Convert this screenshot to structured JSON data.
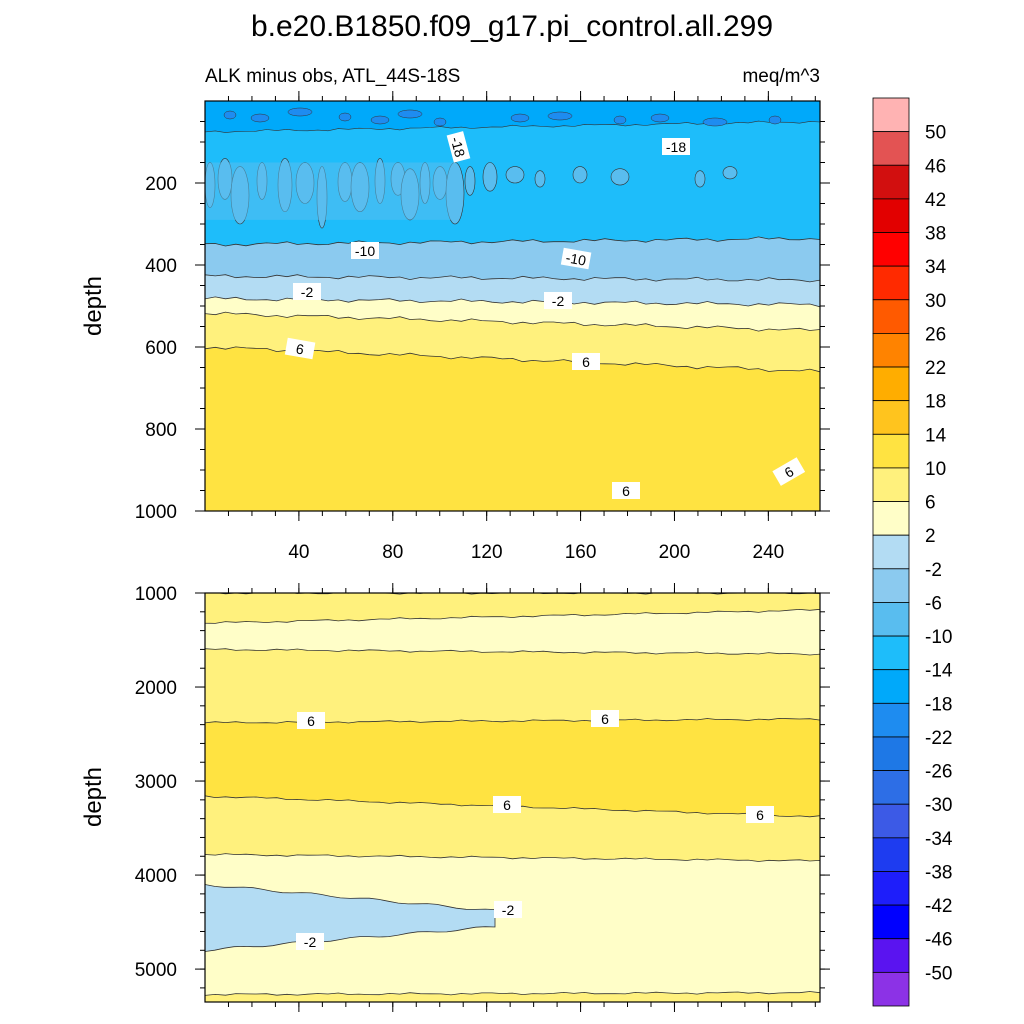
{
  "figure": {
    "title": "b.e20.B1850.f09_g17.pi_control.all.299"
  },
  "chart_data": [
    {
      "type": "contour",
      "subtitle_left": "ALK minus obs, ATL_44S-18S",
      "subtitle_right": "meq/m^3",
      "ylabel": "depth",
      "xlim": [
        0,
        262
      ],
      "ylim": [
        1000,
        0
      ],
      "y_reversed": true,
      "x_ticks": [
        "40",
        "80",
        "120",
        "160",
        "200",
        "240"
      ],
      "y_ticks": [
        "200",
        "400",
        "600",
        "800",
        "1000"
      ],
      "contour_bands": [
        {
          "from": 0,
          "to": 350,
          "color": "#1ebdfa",
          "note": "-18 to -14 with patches"
        },
        {
          "from": 350,
          "to": 420,
          "color": "#8bcaef",
          "value": -10
        },
        {
          "from": 420,
          "to": 490,
          "color": "#b3dcf3",
          "value": -6
        },
        {
          "from": 490,
          "to": 560,
          "color": "#fffec8",
          "value": -2
        },
        {
          "from": 560,
          "to": 650,
          "color": "#fff17d",
          "value": 2
        },
        {
          "from": 650,
          "to": 1000,
          "color": "#ffe341",
          "value": 6
        }
      ],
      "contour_labels": [
        "-18",
        "-18",
        "-10",
        "-10",
        "-2",
        "-2",
        "6",
        "6",
        "6",
        "6"
      ]
    },
    {
      "type": "contour",
      "ylabel": "depth",
      "xlim": [
        0,
        262
      ],
      "ylim": [
        5350,
        1000
      ],
      "y_reversed": true,
      "y_ticks": [
        "1000",
        "2000",
        "3000",
        "4000",
        "5000"
      ],
      "contour_bands": [
        {
          "from": 1000,
          "to": 1300,
          "color": "#fff17d",
          "value": 2
        },
        {
          "from": 1300,
          "to": 1600,
          "color": "#fffec8",
          "value": -2
        },
        {
          "from": 1600,
          "to": 2350,
          "color": "#fff17d",
          "value": 2
        },
        {
          "from": 2350,
          "to": 3200,
          "color": "#ffe341",
          "value": 6
        },
        {
          "from": 3200,
          "to": 3750,
          "color": "#fff17d",
          "value": 2
        },
        {
          "from": 3750,
          "to": 5350,
          "color": "#fffec8",
          "value": -2
        },
        {
          "from": 4100,
          "to": 4800,
          "color": "#b3dcf3",
          "value": -6,
          "note": "lens x<120"
        }
      ],
      "contour_labels": [
        "6",
        "6",
        "6",
        "6",
        "-2",
        "-2"
      ]
    }
  ],
  "colorbar": {
    "levels": [
      "50",
      "46",
      "42",
      "38",
      "34",
      "30",
      "26",
      "22",
      "18",
      "14",
      "10",
      "6",
      "2",
      "-2",
      "-6",
      "-10",
      "-14",
      "-18",
      "-22",
      "-26",
      "-30",
      "-34",
      "-38",
      "-42",
      "-46",
      "-50"
    ],
    "colors": [
      "#ffb3b3",
      "#e35353",
      "#d20f0f",
      "#e20000",
      "#ff0000",
      "#ff2a00",
      "#ff5a00",
      "#ff8300",
      "#ffad00",
      "#ffc41e",
      "#ffe341",
      "#fff17d",
      "#fffec8",
      "#b3dcf3",
      "#8bcaef",
      "#59bdef",
      "#1ebdfa",
      "#00a9fa",
      "#1e8cf0",
      "#1e78e6",
      "#2d6ee6",
      "#3c5ae6",
      "#1e3cf0",
      "#1e1efa",
      "#0000ff",
      "#5a14f0",
      "#8c32e6"
    ]
  }
}
